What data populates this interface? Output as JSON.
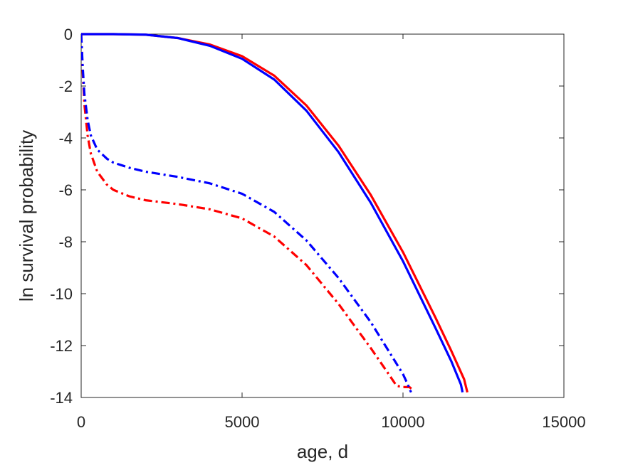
{
  "chart_data": {
    "type": "line",
    "title": "",
    "xlabel": "age, d",
    "ylabel": "ln survival probability",
    "xlim": [
      0,
      15000
    ],
    "ylim": [
      -14,
      0
    ],
    "xticks": [
      0,
      5000,
      10000,
      15000
    ],
    "yticks": [
      0,
      -2,
      -4,
      -6,
      -8,
      -10,
      -12,
      -14
    ],
    "xtick_labels": [
      "0",
      "5000",
      "10000",
      "15000"
    ],
    "ytick_labels": [
      "0",
      "-2",
      "-4",
      "-6",
      "-8",
      "-10",
      "-12",
      "-14"
    ],
    "grid": false,
    "legend": null,
    "series": [
      {
        "color": "#ff0000",
        "style": "solid",
        "x": [
          0,
          1000,
          2000,
          3000,
          4000,
          5000,
          6000,
          7000,
          8000,
          9000,
          10000,
          11000,
          11500,
          11900,
          12000
        ],
        "y": [
          0,
          0,
          -0.02,
          -0.15,
          -0.4,
          -0.85,
          -1.6,
          -2.75,
          -4.3,
          -6.2,
          -8.4,
          -10.9,
          -12.2,
          -13.3,
          -13.8
        ]
      },
      {
        "color": "#0000ff",
        "style": "solid",
        "x": [
          0,
          1000,
          2000,
          3000,
          4000,
          5000,
          6000,
          7000,
          8000,
          9000,
          10000,
          11000,
          11500,
          11800,
          11850
        ],
        "y": [
          0,
          0,
          -0.02,
          -0.15,
          -0.45,
          -0.95,
          -1.75,
          -2.95,
          -4.55,
          -6.5,
          -8.75,
          -11.3,
          -12.6,
          -13.5,
          -13.8
        ]
      },
      {
        "color": "#ff0000",
        "style": "dashdot",
        "x": [
          0,
          50,
          100,
          200,
          300,
          500,
          800,
          1000,
          1500,
          2000,
          3000,
          4000,
          5000,
          6000,
          7000,
          8000,
          9000,
          9500,
          9800,
          10000,
          10200,
          10300
        ],
        "y": [
          0,
          -1.5,
          -2.7,
          -3.9,
          -4.6,
          -5.3,
          -5.8,
          -6.0,
          -6.25,
          -6.4,
          -6.55,
          -6.75,
          -7.1,
          -7.8,
          -8.9,
          -10.4,
          -12.1,
          -13.0,
          -13.55,
          -13.6,
          -13.6,
          -13.7
        ]
      },
      {
        "color": "#0000ff",
        "style": "dashdot",
        "x": [
          0,
          50,
          100,
          200,
          300,
          500,
          800,
          1000,
          1500,
          2000,
          3000,
          4000,
          5000,
          6000,
          7000,
          8000,
          9000,
          9500,
          9800,
          10000,
          10150,
          10250
        ],
        "y": [
          0,
          -1.3,
          -2.3,
          -3.3,
          -3.9,
          -4.45,
          -4.8,
          -4.95,
          -5.15,
          -5.3,
          -5.5,
          -5.75,
          -6.15,
          -6.85,
          -7.95,
          -9.4,
          -11.1,
          -12.1,
          -12.7,
          -13.1,
          -13.5,
          -13.8
        ]
      }
    ]
  }
}
